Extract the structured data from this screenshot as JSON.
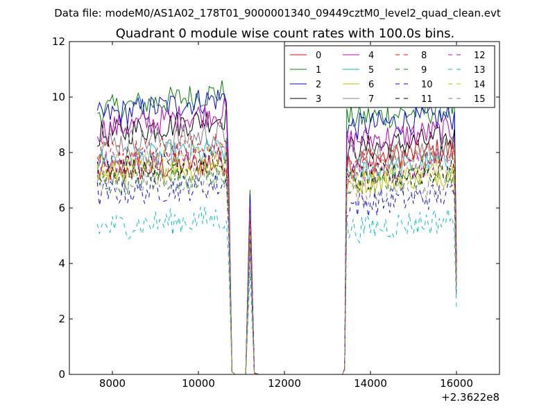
{
  "chart_data": {
    "type": "line",
    "suptitle": "Data file: modeM0/AS1A02_178T01_9000001340_09449cztM0_level2_quad_clean.evt",
    "title": "Quadrant 0 module wise count rates with 100.0s bins.",
    "xlabel": "",
    "ylabel": "",
    "x_offset_label": "+2.3622e8",
    "xlim": [
      7000,
      17000
    ],
    "ylim": [
      0,
      12
    ],
    "x_ticks": [
      8000,
      10000,
      12000,
      14000,
      16000
    ],
    "y_ticks": [
      0,
      2,
      4,
      6,
      8,
      10,
      12
    ],
    "grid": false,
    "legend_placement": "top-right",
    "legend_columns": 4,
    "segments": [
      {
        "start": 7650,
        "end": 10650
      },
      {
        "start": 13450,
        "end": 15950
      }
    ],
    "series": [
      {
        "name": "0",
        "color": "#ff0000",
        "dash": "solid",
        "level_a": 7.3,
        "level_b": 7.7
      },
      {
        "name": "1",
        "color": "#008000",
        "dash": "solid",
        "level_a": 9.5,
        "level_b": 9.2
      },
      {
        "name": "2",
        "color": "#0000ff",
        "dash": "solid",
        "level_a": 9.3,
        "level_b": 8.9
      },
      {
        "name": "3",
        "color": "#000000",
        "dash": "solid",
        "level_a": 8.6,
        "level_b": 8.1
      },
      {
        "name": "4",
        "color": "#bf00bf",
        "dash": "solid",
        "level_a": 8.8,
        "level_b": 8.4
      },
      {
        "name": "5",
        "color": "#00bfbf",
        "dash": "solid",
        "level_a": 7.7,
        "level_b": 7.3
      },
      {
        "name": "6",
        "color": "#bfbf00",
        "dash": "solid",
        "level_a": 7.2,
        "level_b": 6.9
      },
      {
        "name": "7",
        "color": "#808080",
        "dash": "solid",
        "level_a": 8.3,
        "level_b": 7.8
      },
      {
        "name": "8",
        "color": "#ff0000",
        "dash": "dashed",
        "level_a": 7.9,
        "level_b": 7.5
      },
      {
        "name": "9",
        "color": "#008000",
        "dash": "dashed",
        "level_a": 6.9,
        "level_b": 6.8
      },
      {
        "name": "10",
        "color": "#0000ff",
        "dash": "dashed",
        "level_a": 6.5,
        "level_b": 6.1
      },
      {
        "name": "11",
        "color": "#000000",
        "dash": "dashed",
        "level_a": 7.4,
        "level_b": 7.0
      },
      {
        "name": "12",
        "color": "#bf00bf",
        "dash": "dashed",
        "level_a": 7.6,
        "level_b": 7.2
      },
      {
        "name": "13",
        "color": "#00bfbf",
        "dash": "dashed",
        "level_a": 5.3,
        "level_b": 5.2
      },
      {
        "name": "14",
        "color": "#bfbf00",
        "dash": "dashed",
        "level_a": 7.5,
        "level_b": 7.1
      },
      {
        "name": "15",
        "color": "#808080",
        "dash": "dashed",
        "level_a": 6.8,
        "level_b": 6.5
      }
    ]
  }
}
